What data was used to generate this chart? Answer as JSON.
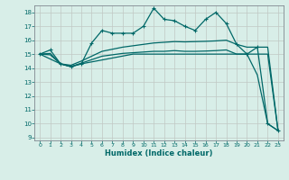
{
  "xlabel": "Humidex (Indice chaleur)",
  "bg_color": "#d8eee8",
  "grid_color": "#c8d8d0",
  "line_color": "#006868",
  "xlim": [
    -0.5,
    23.5
  ],
  "ylim": [
    8.8,
    18.5
  ],
  "yticks": [
    9,
    10,
    11,
    12,
    13,
    14,
    15,
    16,
    17,
    18
  ],
  "xticks": [
    0,
    1,
    2,
    3,
    4,
    5,
    6,
    7,
    8,
    9,
    10,
    11,
    12,
    13,
    14,
    15,
    16,
    17,
    18,
    19,
    20,
    21,
    22,
    23
  ],
  "line1_x": [
    0,
    1,
    2,
    3,
    4,
    5,
    6,
    7,
    8,
    9,
    10,
    11,
    12,
    13,
    14,
    15,
    16,
    17,
    18,
    19,
    20,
    21,
    22,
    23
  ],
  "line1_y": [
    15.0,
    15.3,
    14.3,
    14.1,
    14.3,
    15.8,
    16.7,
    16.5,
    16.5,
    16.5,
    17.0,
    18.3,
    17.5,
    17.4,
    17.0,
    16.7,
    17.5,
    18.0,
    17.2,
    15.7,
    15.0,
    15.5,
    10.0,
    9.5
  ],
  "line2_x": [
    0,
    1,
    2,
    3,
    4,
    5,
    6,
    7,
    8,
    9,
    10,
    11,
    12,
    13,
    14,
    15,
    16,
    17,
    18,
    19,
    20,
    21,
    22,
    23
  ],
  "line2_y": [
    15.0,
    15.05,
    14.3,
    14.2,
    14.5,
    14.85,
    15.2,
    15.35,
    15.5,
    15.6,
    15.7,
    15.8,
    15.85,
    15.9,
    15.88,
    15.9,
    15.92,
    15.95,
    16.0,
    15.7,
    15.5,
    15.5,
    15.5,
    9.5
  ],
  "line3_x": [
    0,
    1,
    2,
    3,
    4,
    5,
    6,
    7,
    8,
    9,
    10,
    11,
    12,
    13,
    14,
    15,
    16,
    17,
    18,
    19,
    20,
    21,
    22,
    23
  ],
  "line3_y": [
    15.0,
    14.95,
    14.3,
    14.1,
    14.35,
    14.6,
    14.85,
    14.95,
    15.05,
    15.1,
    15.15,
    15.2,
    15.2,
    15.25,
    15.2,
    15.2,
    15.22,
    15.25,
    15.3,
    15.0,
    15.0,
    15.0,
    15.0,
    9.5
  ],
  "line4_x": [
    0,
    2,
    3,
    4,
    9,
    10,
    20,
    21,
    22,
    23
  ],
  "line4_y": [
    15.0,
    14.3,
    14.1,
    14.3,
    15.0,
    15.0,
    15.0,
    13.5,
    10.0,
    9.5
  ]
}
